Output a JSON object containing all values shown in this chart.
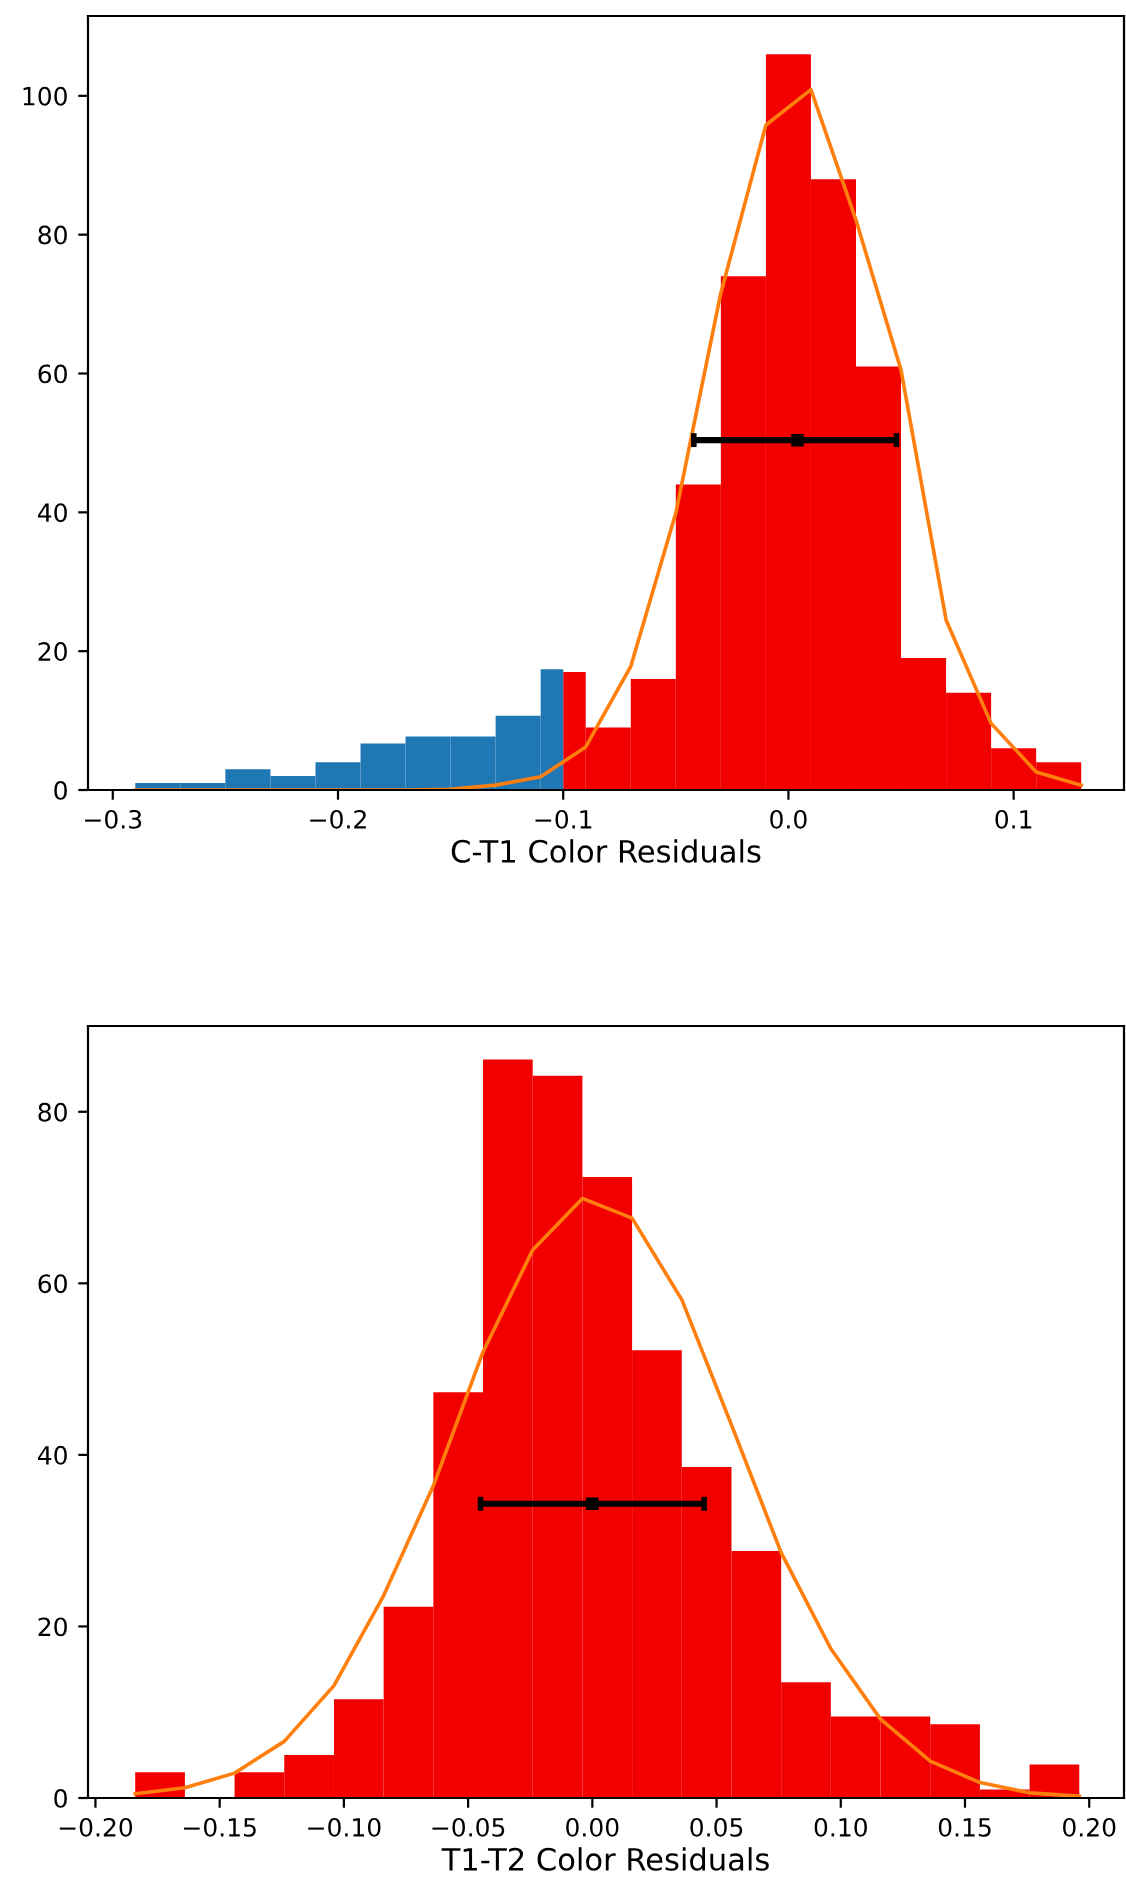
{
  "chart_data": [
    {
      "type": "histogram",
      "xlabel": "C-T1 Color Residuals",
      "xlim": [
        -0.311,
        0.149
      ],
      "ylim": [
        0,
        111.5
      ],
      "xticks": [
        {
          "value": -0.3,
          "label": "−0.3"
        },
        {
          "value": -0.2,
          "label": "−0.2"
        },
        {
          "value": -0.1,
          "label": "−0.1"
        },
        {
          "value": 0,
          "label": "0.0"
        },
        {
          "value": 0.1,
          "label": "0.1"
        }
      ],
      "yticks": [
        0,
        20,
        40,
        60,
        80,
        100
      ],
      "grid": false,
      "series": [
        {
          "color": "#f20000",
          "bins": [
            -0.1,
            -0.09,
            -0.07,
            -0.05,
            -0.03,
            -0.01,
            0.01,
            0.03,
            0.05,
            0.07,
            0.09,
            0.11,
            0.13
          ],
          "values": [
            17,
            9,
            16,
            44,
            74,
            106,
            88,
            61,
            19,
            14,
            6,
            4
          ]
        },
        {
          "color": "#1f77b4",
          "bins": [
            -0.29,
            -0.27,
            -0.25,
            -0.23,
            -0.21,
            -0.19,
            -0.17,
            -0.15,
            -0.13,
            -0.11,
            -0.1
          ],
          "values": [
            1,
            1,
            3,
            2,
            4,
            6.7,
            7.7,
            7.7,
            10.7,
            17.4
          ]
        },
        {
          "type": "line",
          "color": "#ff7f0e",
          "marker": "none",
          "line_style": "solid",
          "x": [
            -0.29,
            -0.27,
            -0.25,
            -0.23,
            -0.21,
            -0.19,
            -0.17,
            -0.15,
            -0.13,
            -0.11,
            -0.09,
            -0.07,
            -0.05,
            -0.03,
            -0.01,
            0.01,
            0.03,
            0.05,
            0.07,
            0.09,
            0.11,
            0.13
          ],
          "values": [
            0,
            0,
            0,
            0,
            0,
            0,
            0,
            0.1,
            0.7,
            1.9,
            6.2,
            17.8,
            39.9,
            71.6,
            95.8,
            100.9,
            82.1,
            60.5,
            24.5,
            9.6,
            2.6,
            0.7
          ]
        },
        {
          "type": "scatter",
          "color": "#000000",
          "marker": "square",
          "x": [
            0.004
          ],
          "values": [
            50.4
          ],
          "xerrors": [
            [
              -0.042,
              0.048
            ]
          ]
        }
      ]
    },
    {
      "type": "histogram",
      "xlabel": "T1-T2 Color Residuals",
      "xlim": [
        -0.203,
        0.214
      ],
      "ylim": [
        0,
        90
      ],
      "xticks": [
        {
          "value": -0.2,
          "label": "−0.20"
        },
        {
          "value": -0.15,
          "label": "−0.15"
        },
        {
          "value": -0.1,
          "label": "−0.10"
        },
        {
          "value": -0.05,
          "label": "−0.05"
        },
        {
          "value": 0,
          "label": "0.00"
        },
        {
          "value": 0.05,
          "label": "0.05"
        },
        {
          "value": 0.1,
          "label": "0.10"
        },
        {
          "value": 0.15,
          "label": "0.15"
        },
        {
          "value": 0.2,
          "label": "0.20"
        }
      ],
      "yticks": [
        0,
        20,
        40,
        60,
        80
      ],
      "grid": false,
      "series": [
        {
          "color": "#f20000",
          "bins": [
            -0.184,
            -0.164,
            -0.144,
            -0.124,
            -0.104,
            -0.084,
            -0.064,
            -0.044,
            -0.024,
            -0.004,
            0.016,
            0.036,
            0.056,
            0.076,
            0.096,
            0.116,
            0.136,
            0.156,
            0.176,
            0.196
          ],
          "values": [
            3,
            0,
            3,
            5,
            11.5,
            22.3,
            47.3,
            86.1,
            84.2,
            72.4,
            52.2,
            38.6,
            28.8,
            13.5,
            9.5,
            9.5,
            8.6,
            1,
            3.9
          ]
        },
        {
          "type": "line",
          "color": "#ff7f0e",
          "marker": "none",
          "line_style": "solid",
          "x": [
            -0.184,
            -0.164,
            -0.144,
            -0.124,
            -0.104,
            -0.084,
            -0.064,
            -0.044,
            -0.024,
            -0.004,
            0.016,
            0.036,
            0.056,
            0.076,
            0.096,
            0.116,
            0.136,
            0.156,
            0.176,
            0.196
          ],
          "values": [
            0.5,
            1.2,
            2.9,
            6.6,
            13.1,
            23.6,
            36.4,
            52,
            63.9,
            69.9,
            67.6,
            58.1,
            43.5,
            28.6,
            17.4,
            9.2,
            4.3,
            1.8,
            0.6,
            0.2
          ]
        },
        {
          "type": "scatter",
          "color": "#000000",
          "marker": "square",
          "x": [
            0.0
          ],
          "values": [
            34.3
          ],
          "xerrors": [
            0.045
          ]
        }
      ]
    }
  ]
}
